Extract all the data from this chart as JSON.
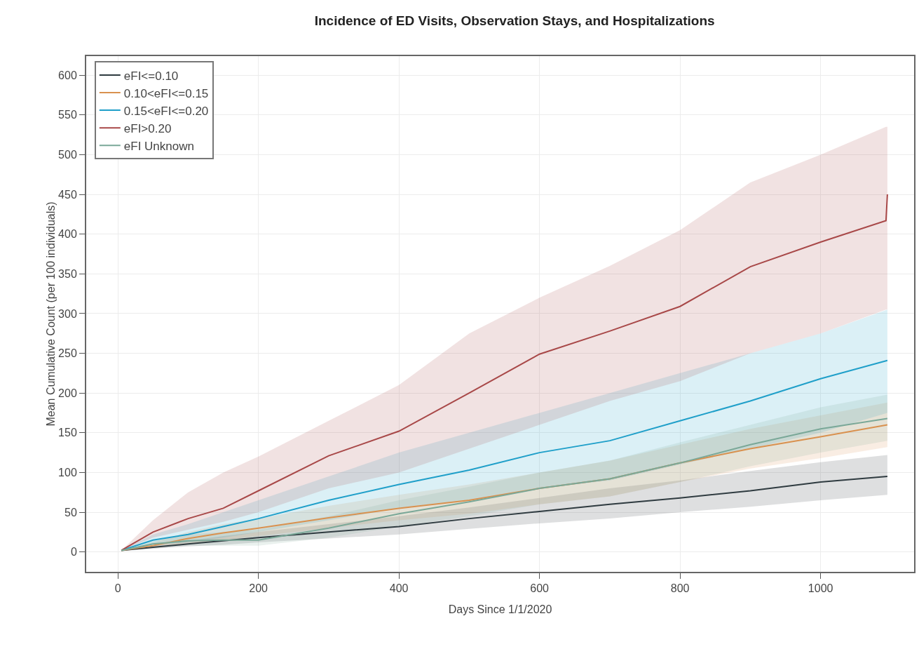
{
  "chart_data": {
    "type": "line",
    "title": "Incidence of ED Visits, Observation Stays, and Hospitalizations",
    "xlabel": "Days Since 1/1/2020",
    "ylabel": "Mean Cumulative Count (per 100 individuals)",
    "x": [
      5,
      50,
      100,
      150,
      200,
      300,
      400,
      500,
      600,
      700,
      800,
      900,
      1000,
      1095
    ],
    "series": [
      {
        "name": "eFI<=0.10",
        "color": "#2f3b40",
        "values": [
          2,
          6,
          10,
          14,
          18,
          25,
          32,
          42,
          51,
          60,
          68,
          77,
          88,
          95
        ],
        "upper": [
          2,
          8,
          14,
          20,
          25,
          35,
          45,
          56,
          68,
          80,
          90,
          102,
          113,
          122
        ],
        "lower": [
          2,
          4,
          7,
          9,
          12,
          17,
          22,
          29,
          36,
          42,
          50,
          57,
          65,
          72
        ]
      },
      {
        "name": "0.10<eFI<=0.15",
        "color": "#d9914f",
        "values": [
          2,
          8,
          17,
          24,
          30,
          43,
          55,
          65,
          80,
          92,
          112,
          130,
          145,
          160
        ],
        "upper": [
          2,
          12,
          25,
          35,
          42,
          58,
          72,
          85,
          100,
          115,
          135,
          155,
          172,
          188
        ],
        "lower": [
          2,
          5,
          10,
          15,
          20,
          30,
          40,
          48,
          60,
          70,
          88,
          105,
          118,
          132
        ]
      },
      {
        "name": "0.15<eFI<=0.20",
        "color": "#1f9fc9",
        "values": [
          2,
          15,
          22,
          32,
          42,
          65,
          85,
          103,
          125,
          140,
          165,
          190,
          218,
          241
        ],
        "upper": [
          2,
          22,
          35,
          50,
          65,
          95,
          125,
          150,
          175,
          200,
          225,
          250,
          275,
          305
        ],
        "lower": [
          2,
          9,
          12,
          18,
          25,
          40,
          55,
          65,
          80,
          90,
          110,
          130,
          150,
          175
        ]
      },
      {
        "name": "eFI>0.20",
        "color": "#a84848",
        "x": [
          5,
          50,
          100,
          150,
          200,
          300,
          400,
          500,
          600,
          700,
          800,
          900,
          1000,
          1093,
          1095
        ],
        "values": [
          2,
          25,
          42,
          55,
          77,
          121,
          152,
          200,
          249,
          278,
          309,
          359,
          390,
          417,
          450
        ],
        "upper": [
          2,
          40,
          75,
          100,
          120,
          165,
          210,
          275,
          320,
          360,
          405,
          465,
          500,
          535,
          535
        ],
        "lower": [
          2,
          18,
          28,
          38,
          50,
          80,
          100,
          130,
          160,
          190,
          215,
          250,
          275,
          305,
          305
        ]
      },
      {
        "name": "eFI Unknown",
        "color": "#7aa898",
        "values": [
          2,
          10,
          14,
          15,
          15,
          30,
          48,
          63,
          80,
          92,
          112,
          135,
          155,
          168
        ],
        "upper": [
          2,
          15,
          22,
          25,
          28,
          45,
          65,
          82,
          100,
          115,
          138,
          160,
          182,
          198
        ],
        "lower": [
          2,
          5,
          8,
          8,
          8,
          18,
          32,
          45,
          60,
          70,
          88,
          108,
          125,
          140
        ]
      }
    ],
    "xlim": [
      -45,
      1133
    ],
    "xticks": [
      0,
      200,
      400,
      600,
      800,
      1000
    ],
    "ylim": [
      -25,
      624
    ],
    "yticks": [
      0,
      50,
      100,
      150,
      200,
      250,
      300,
      350,
      400,
      450,
      500,
      550,
      600
    ],
    "grid": true,
    "legend": "top left",
    "line_style": "solid",
    "marker": "none"
  }
}
